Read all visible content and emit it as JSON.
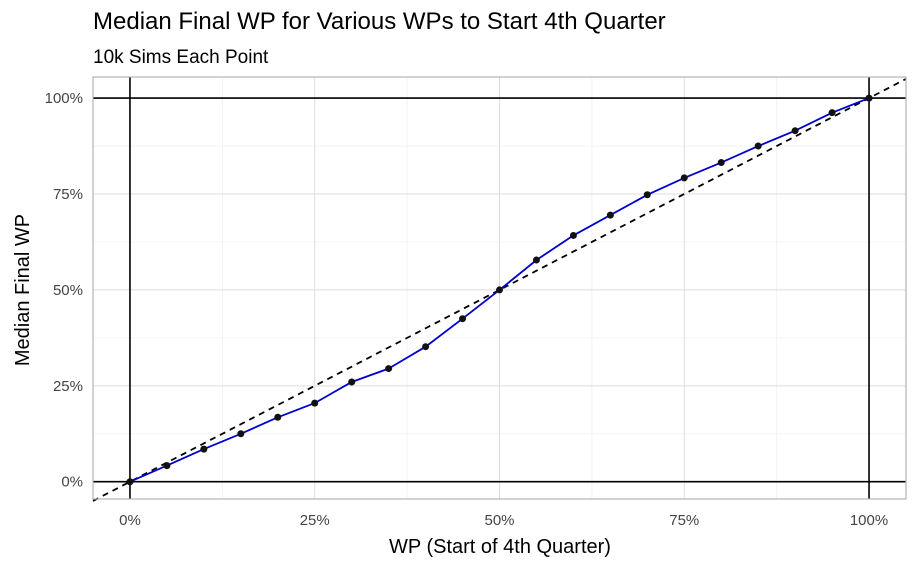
{
  "chart_data": {
    "type": "line",
    "title": "Median Final WP for Various WPs to Start 4th Quarter",
    "subtitle": "10k Sims Each Point",
    "xlabel": "WP (Start of 4th Quarter)",
    "ylabel": "Median Final WP",
    "x_ticks": [
      "0%",
      "25%",
      "50%",
      "75%",
      "100%"
    ],
    "y_ticks": [
      "0%",
      "25%",
      "50%",
      "75%",
      "100%"
    ],
    "xlim": [
      -0.05,
      1.05
    ],
    "ylim": [
      -0.045,
      1.055
    ],
    "grid": true,
    "x": [
      0,
      0.05,
      0.1,
      0.15,
      0.2,
      0.25,
      0.3,
      0.35,
      0.4,
      0.45,
      0.5,
      0.55,
      0.6,
      0.65,
      0.7,
      0.75,
      0.8,
      0.85,
      0.9,
      0.95,
      1.0
    ],
    "series": [
      {
        "values": [
          0.0,
          0.042,
          0.085,
          0.125,
          0.168,
          0.205,
          0.26,
          0.295,
          0.352,
          0.425,
          0.5,
          0.578,
          0.642,
          0.695,
          0.748,
          0.792,
          0.832,
          0.875,
          0.915,
          0.962,
          1.0
        ],
        "color": "#0000cc",
        "marker_color": "#111111"
      }
    ],
    "reference_line": {
      "style": "dashed",
      "color": "#000000",
      "slope": 1,
      "intercept": 0
    },
    "reference_vlines": [
      0,
      1
    ],
    "reference_hlines": [
      0,
      1
    ]
  }
}
